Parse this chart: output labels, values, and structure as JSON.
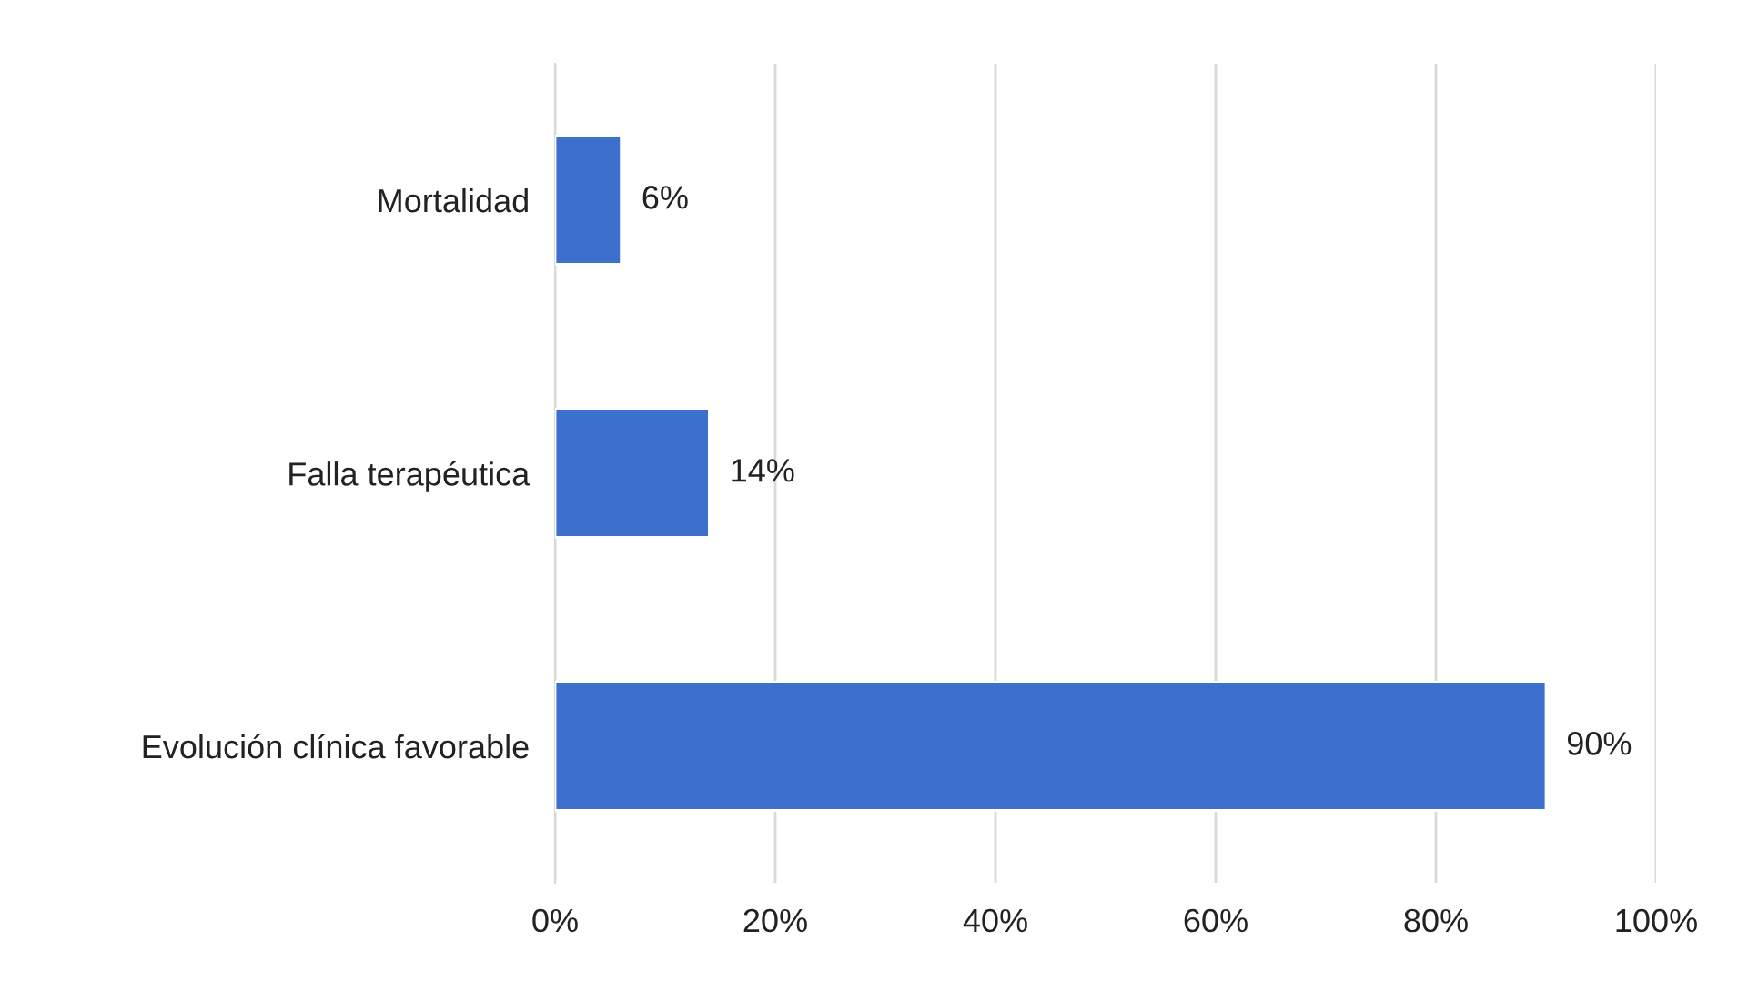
{
  "chart_data": {
    "type": "bar",
    "orientation": "horizontal",
    "categories": [
      "Mortalidad",
      "Falla terapéutica",
      "Evolución clínica favorable"
    ],
    "values": [
      6,
      14,
      90
    ],
    "color": "#3d6fcc",
    "value_labels": [
      "6%",
      "14%",
      "90%"
    ],
    "xlim": [
      0,
      100
    ],
    "xticks": [
      {
        "value": 0,
        "label": "0%"
      },
      {
        "value": 20,
        "label": "20%"
      },
      {
        "value": 40,
        "label": "40%"
      },
      {
        "value": 60,
        "label": "60%"
      },
      {
        "value": 80,
        "label": "80%"
      },
      {
        "value": 100,
        "label": "100%"
      }
    ],
    "grid": "x",
    "legend": false
  }
}
